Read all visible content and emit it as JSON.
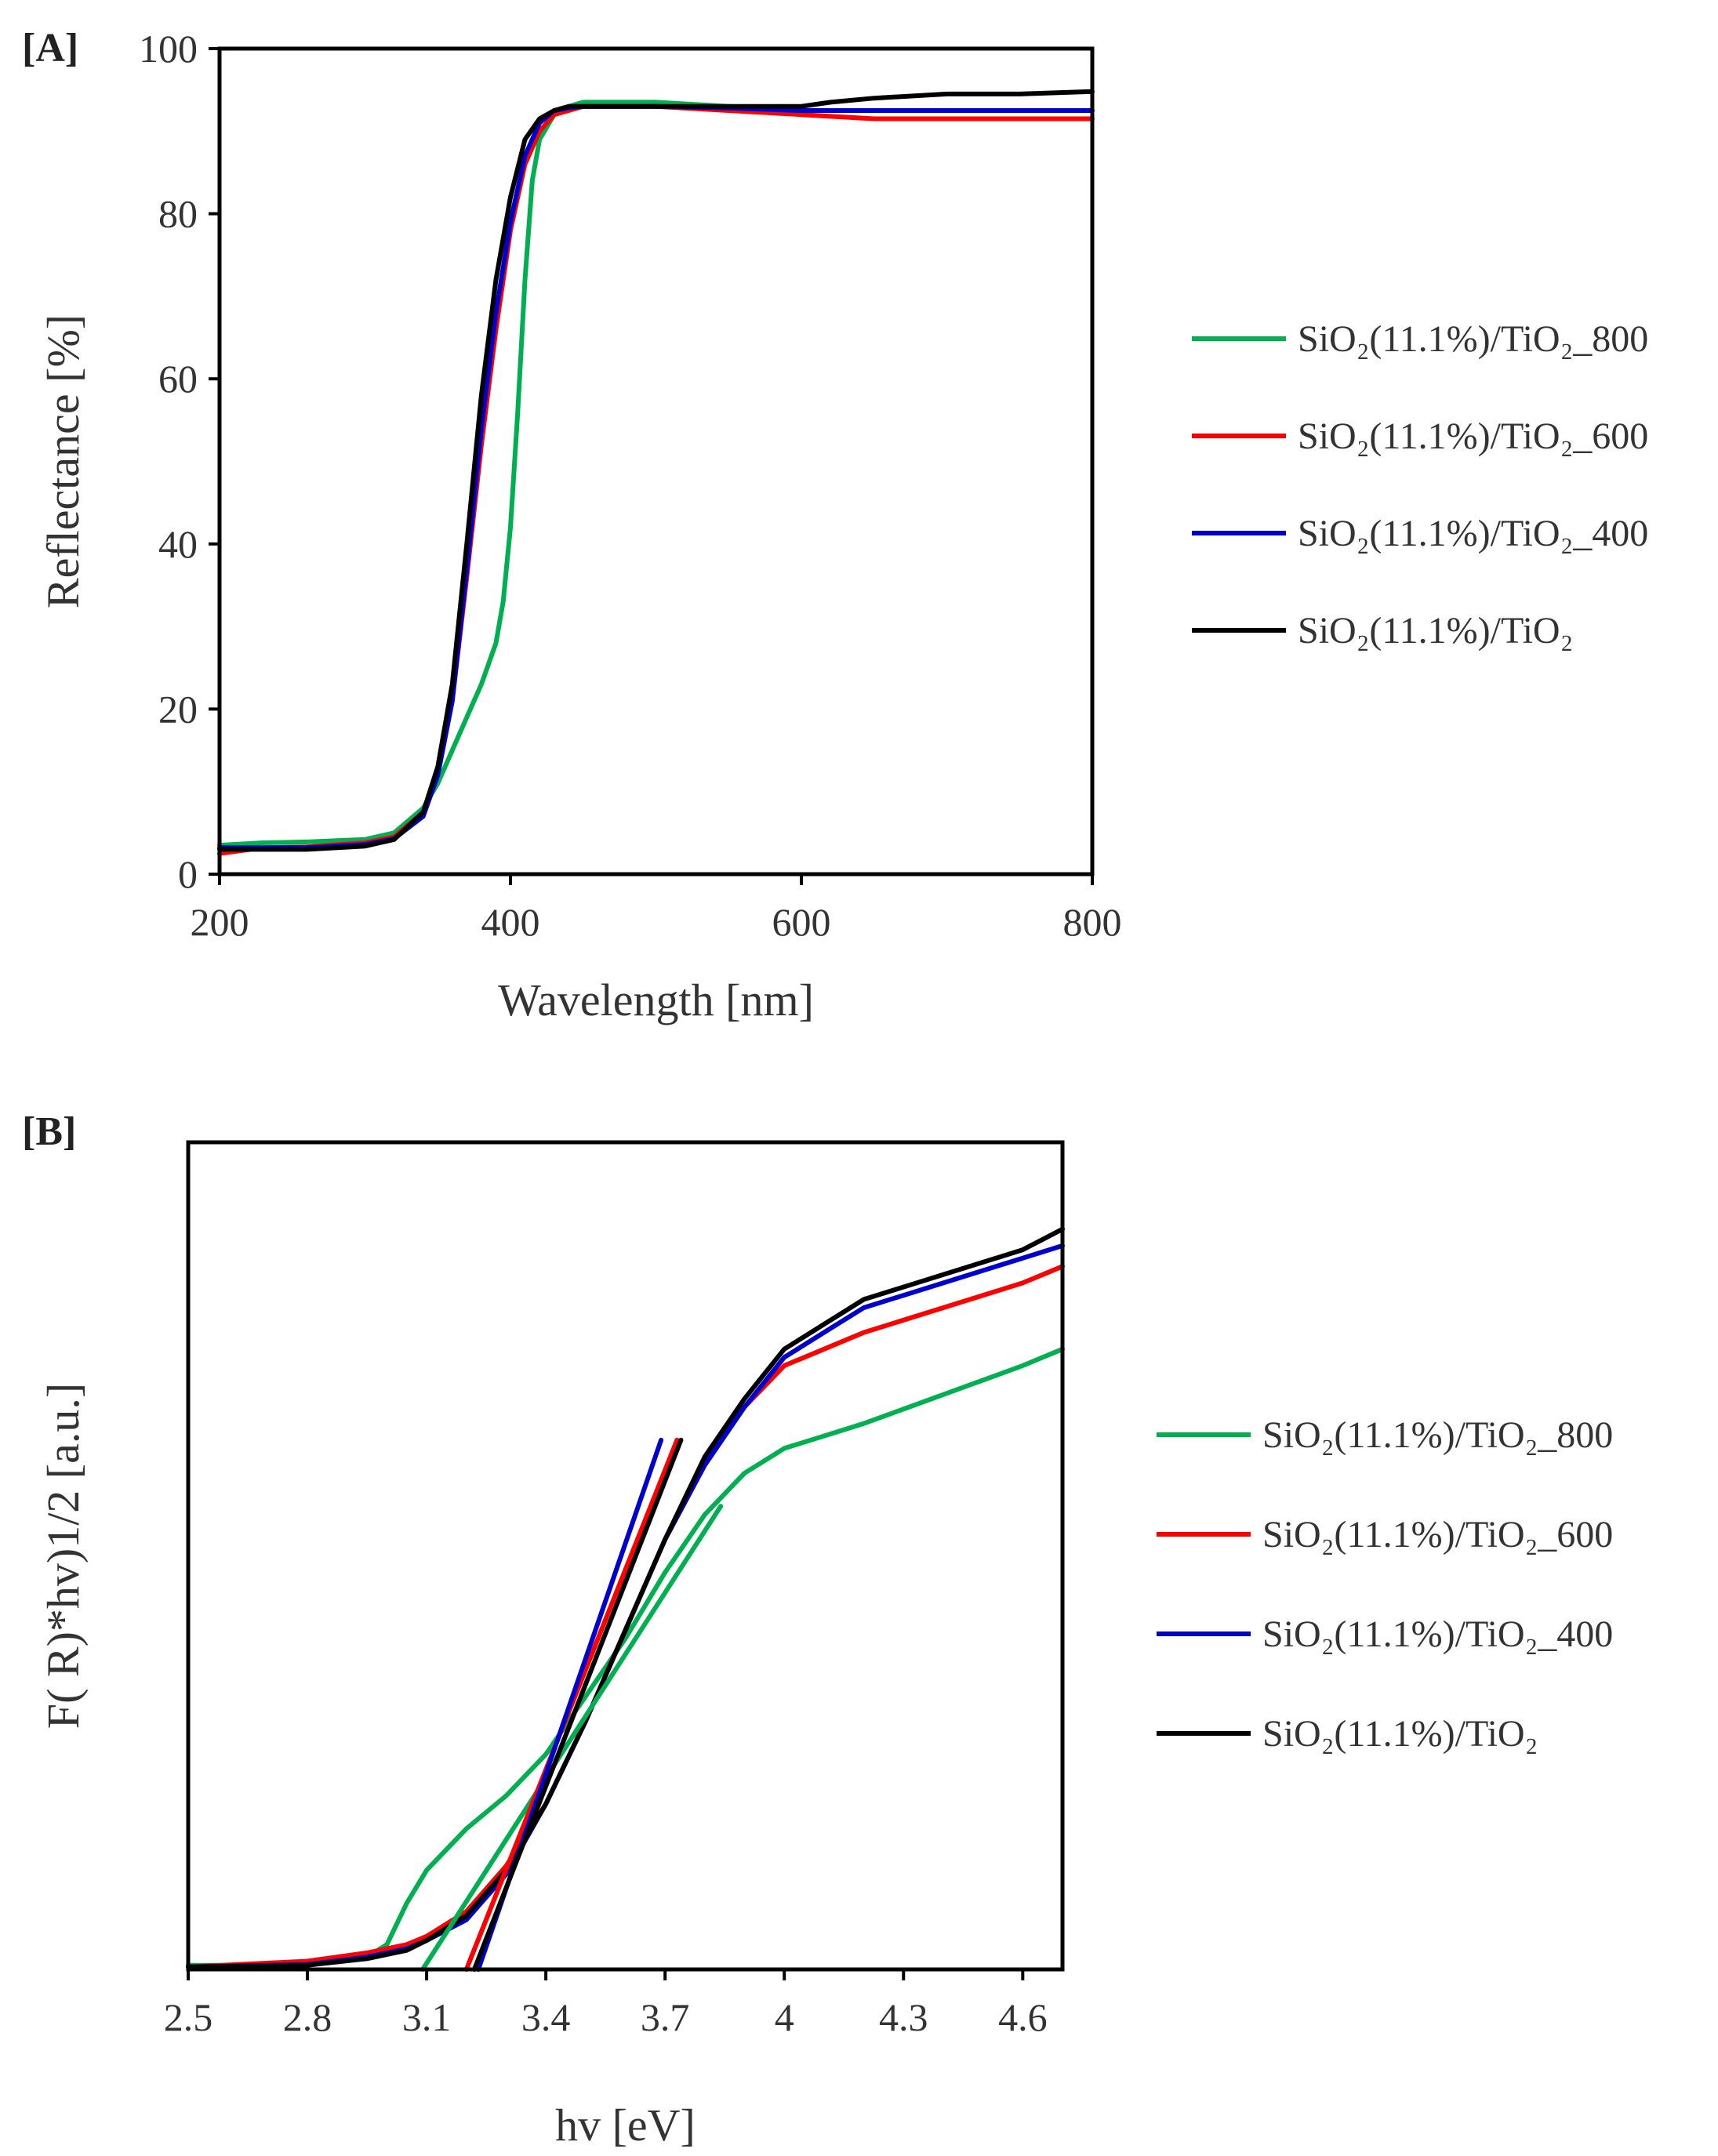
{
  "chart_data": [
    {
      "panel": "[A]",
      "type": "line",
      "xlabel": "Wavelength  [nm]",
      "ylabel": "Reflectance  [%]",
      "xlim": [
        200,
        800
      ],
      "ylim": [
        0,
        100
      ],
      "xticks": [
        "200",
        "400",
        "600",
        "800"
      ],
      "yticks": [
        "0",
        "20",
        "40",
        "60",
        "80",
        "100"
      ],
      "grid": false,
      "legend_position": "right",
      "series": [
        {
          "name": "SiO₂(11.1%)/TiO₂_800",
          "color": "#00b050",
          "x": [
            200,
            230,
            260,
            300,
            320,
            340,
            350,
            360,
            370,
            380,
            390,
            395,
            400,
            405,
            410,
            415,
            420,
            430,
            440,
            450,
            470,
            500,
            550,
            600,
            650,
            700,
            750,
            800
          ],
          "y": [
            3.5,
            3.8,
            3.9,
            4.2,
            5,
            8,
            11,
            15,
            19,
            23,
            28,
            33,
            42,
            56,
            72,
            84,
            89,
            92,
            93,
            93.5,
            93.5,
            93.5,
            93,
            92.5,
            92.5,
            92.5,
            92.5,
            92.5
          ]
        },
        {
          "name": "SiO₂(11.1%)/TiO₂_600",
          "color": "#ff0000",
          "x": [
            200,
            230,
            260,
            300,
            320,
            340,
            350,
            360,
            370,
            380,
            390,
            400,
            410,
            420,
            430,
            440,
            450,
            470,
            500,
            550,
            600,
            650,
            700,
            750,
            800
          ],
          "y": [
            2.5,
            3.2,
            3.3,
            3.8,
            4.5,
            7.5,
            12,
            21,
            36,
            52,
            66,
            78,
            86,
            90,
            92,
            92.5,
            93,
            93,
            93,
            92.5,
            92,
            91.5,
            91.5,
            91.5,
            91.5
          ]
        },
        {
          "name": "SiO₂(11.1%)/TiO₂_400",
          "color": "#0000cc",
          "x": [
            200,
            230,
            260,
            300,
            320,
            340,
            350,
            360,
            370,
            380,
            390,
            400,
            410,
            420,
            430,
            440,
            450,
            470,
            500,
            550,
            600,
            650,
            700,
            750,
            800
          ],
          "y": [
            3.2,
            3.2,
            3.2,
            3.6,
            4.3,
            7,
            12,
            21,
            37,
            54,
            68,
            79,
            87,
            91,
            92.5,
            92.8,
            93,
            93,
            93,
            92.8,
            92.5,
            92.5,
            92.5,
            92.5,
            92.5
          ]
        },
        {
          "name": "SiO₂(11.1%)/TiO₂",
          "color": "#000000",
          "x": [
            200,
            230,
            260,
            300,
            320,
            340,
            350,
            360,
            370,
            380,
            390,
            400,
            410,
            420,
            430,
            440,
            450,
            470,
            500,
            550,
            600,
            620,
            650,
            700,
            750,
            800
          ],
          "y": [
            3,
            3,
            3,
            3.4,
            4.2,
            7.5,
            13,
            23,
            40,
            58,
            72,
            82,
            89,
            91.5,
            92.5,
            93,
            93,
            93,
            93,
            93,
            93,
            93.5,
            94,
            94.5,
            94.5,
            94.8
          ]
        }
      ]
    },
    {
      "panel": "[B]",
      "type": "line",
      "xlabel": "hv [eV]",
      "ylabel": "F( R)*hv)1/2 [a.u.]",
      "xlim": [
        2.5,
        4.7
      ],
      "ylim": [
        0,
        100
      ],
      "xticks": [
        "2.5",
        "2.8",
        "3.1",
        "3.4",
        "3.7",
        "4",
        "4.3",
        "4.6"
      ],
      "grid": false,
      "legend_position": "right",
      "series": [
        {
          "name": "SiO₂(11.1%)/TiO₂_800",
          "color": "#00b050",
          "x": [
            2.5,
            2.8,
            2.95,
            3.0,
            3.05,
            3.1,
            3.15,
            3.2,
            3.3,
            3.4,
            3.5,
            3.6,
            3.7,
            3.8,
            3.9,
            4.0,
            4.2,
            4.4,
            4.6,
            4.7
          ],
          "y": [
            0.5,
            0.5,
            1.5,
            3,
            8,
            12,
            14.5,
            17,
            21,
            26,
            33,
            40,
            48,
            55,
            60,
            63,
            66,
            69.5,
            73,
            75
          ]
        },
        {
          "name": "SiO₂(11.1%)/TiO₂_600",
          "color": "#ff0000",
          "x": [
            2.5,
            2.8,
            2.95,
            3.05,
            3.1,
            3.2,
            3.3,
            3.4,
            3.5,
            3.6,
            3.7,
            3.8,
            3.9,
            4.0,
            4.1,
            4.2,
            4.4,
            4.6,
            4.7
          ],
          "y": [
            0.3,
            1,
            2,
            3,
            4,
            7,
            12.5,
            20,
            30,
            41,
            52,
            61,
            68,
            73,
            75,
            77,
            80,
            83,
            85
          ]
        },
        {
          "name": "SiO₂(11.1%)/TiO₂_400",
          "color": "#0000cc",
          "x": [
            2.5,
            2.8,
            2.95,
            3.05,
            3.1,
            3.2,
            3.3,
            3.4,
            3.5,
            3.6,
            3.7,
            3.8,
            3.9,
            4.0,
            4.1,
            4.2,
            4.4,
            4.6,
            4.7
          ],
          "y": [
            0.3,
            0.6,
            1.5,
            2.5,
            3.5,
            6,
            11.5,
            20,
            30,
            41,
            52,
            61,
            68,
            74,
            77,
            80,
            83,
            86,
            87.5
          ]
        },
        {
          "name": "SiO₂(11.1%)/TiO₂",
          "color": "#000000",
          "x": [
            2.5,
            2.8,
            2.95,
            3.05,
            3.1,
            3.2,
            3.3,
            3.4,
            3.5,
            3.6,
            3.7,
            3.8,
            3.9,
            4.0,
            4.1,
            4.2,
            4.4,
            4.6,
            4.7
          ],
          "y": [
            0.3,
            0.5,
            1.3,
            2.3,
            3.5,
            6.5,
            12,
            20,
            30,
            41,
            52,
            62,
            69,
            75,
            78,
            81,
            84,
            87,
            89.5
          ]
        }
      ],
      "tangent_lines": [
        {
          "color": "#00b050",
          "x": [
            3.09,
            3.84
          ],
          "y": [
            0,
            56
          ]
        },
        {
          "color": "#ff0000",
          "x": [
            3.2,
            3.73
          ],
          "y": [
            0,
            64
          ]
        },
        {
          "color": "#0000cc",
          "x": [
            3.23,
            3.69
          ],
          "y": [
            0,
            64
          ]
        },
        {
          "color": "#000000",
          "x": [
            3.22,
            3.74
          ],
          "y": [
            0,
            64
          ]
        }
      ]
    }
  ]
}
